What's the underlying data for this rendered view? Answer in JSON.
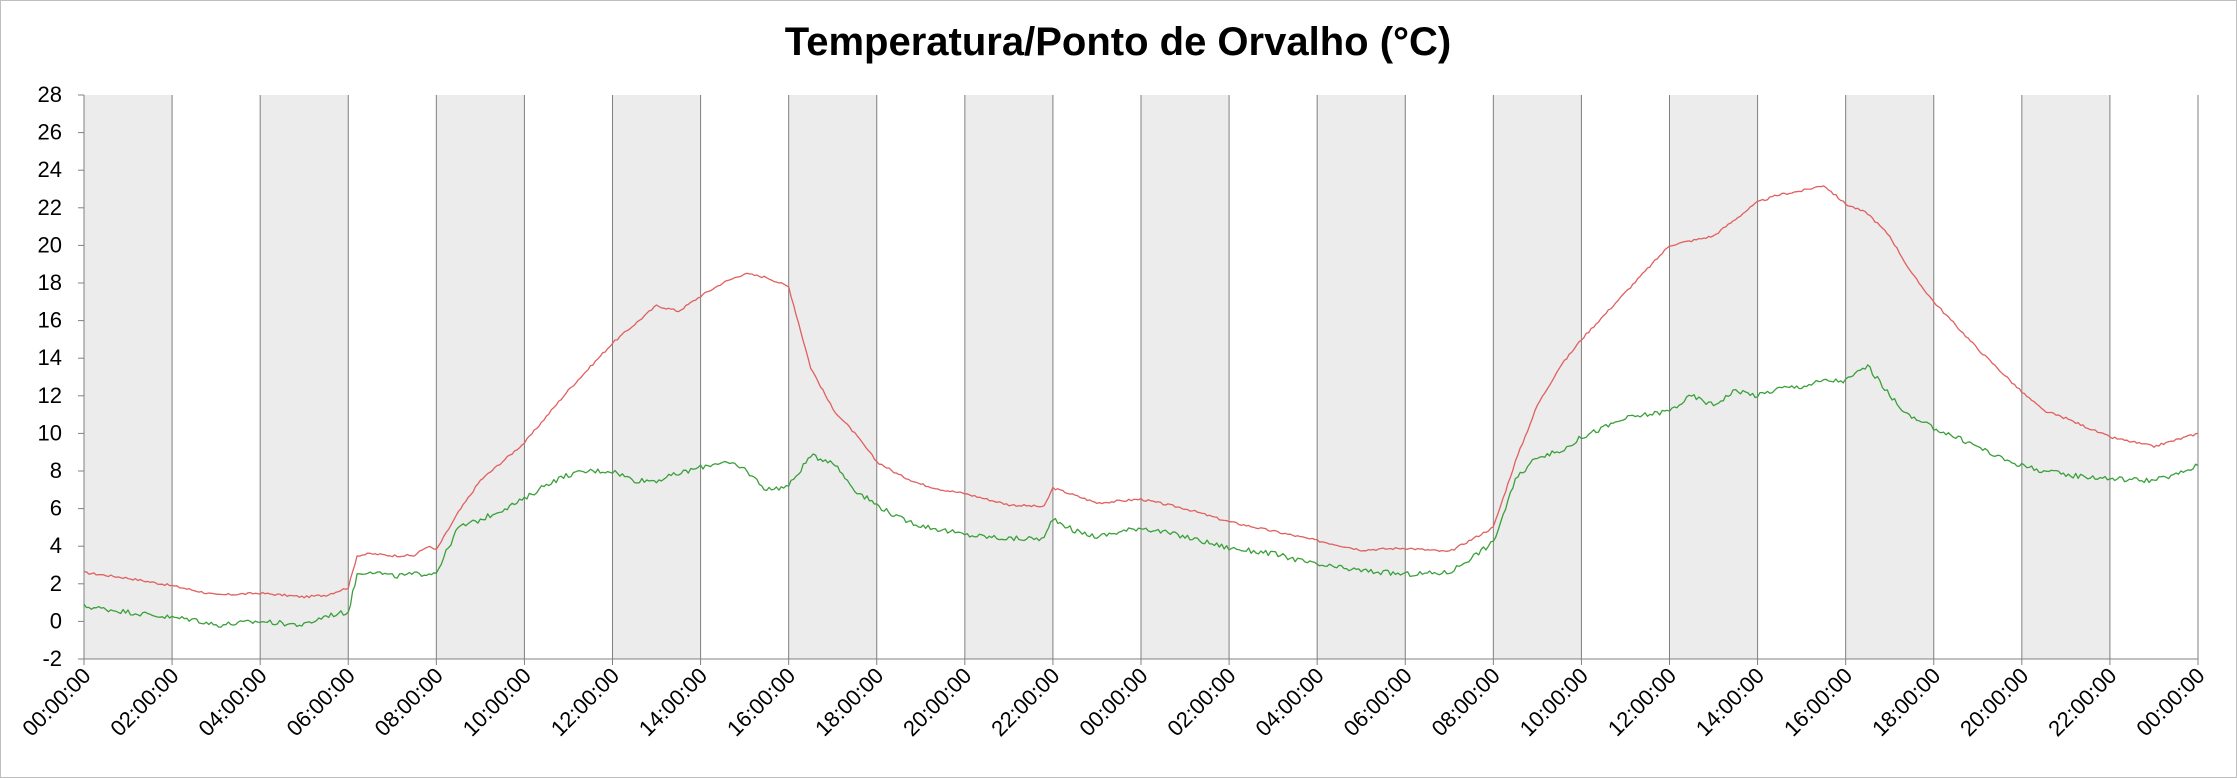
{
  "chart_data": {
    "type": "line",
    "title": "Temperatura/Ponto de Orvalho (°C)",
    "xlabel": "",
    "ylabel": "",
    "ylim": [
      -2,
      28
    ],
    "y_ticks": [
      "-2",
      "0",
      "2",
      "4",
      "6",
      "8",
      "10",
      "12",
      "14",
      "16",
      "18",
      "20",
      "22",
      "24",
      "26",
      "28"
    ],
    "x_unit": "hours",
    "xlim": [
      0,
      48
    ],
    "x_tick_labels": [
      "00:00:00",
      "02:00:00",
      "04:00:00",
      "06:00:00",
      "08:00:00",
      "10:00:00",
      "12:00:00",
      "14:00:00",
      "16:00:00",
      "18:00:00",
      "20:00:00",
      "22:00:00",
      "00:00:00",
      "02:00:00",
      "04:00:00",
      "06:00:00",
      "08:00:00",
      "10:00:00",
      "12:00:00",
      "14:00:00",
      "16:00:00",
      "18:00:00",
      "20:00:00",
      "22:00:00",
      "00:00:00"
    ],
    "shaded_bands_hours": [
      [
        0,
        2
      ],
      [
        4,
        6
      ],
      [
        8,
        10
      ],
      [
        12,
        14
      ],
      [
        16,
        18
      ],
      [
        20,
        22
      ],
      [
        24,
        26
      ],
      [
        28,
        30
      ],
      [
        32,
        34
      ],
      [
        36,
        38
      ],
      [
        40,
        42
      ],
      [
        44,
        46
      ]
    ],
    "grid": "vertical",
    "legend": "none",
    "colors": {
      "red_series": "#e06060",
      "green_series": "#3aa03a",
      "band": "#ececec",
      "gridline": "#7f7f7f"
    },
    "series": [
      {
        "color": "#e06060",
        "x": [
          0,
          1,
          2,
          3,
          4,
          5,
          5.5,
          6,
          6.2,
          6.5,
          7,
          7.5,
          7.8,
          8,
          8.5,
          9,
          10,
          11,
          12,
          13,
          13.5,
          14,
          14.5,
          15,
          15.5,
          16,
          16.5,
          17,
          17.5,
          18,
          18.5,
          19,
          19.5,
          20,
          21,
          21.8,
          22,
          22.5,
          23,
          24,
          25,
          26,
          27,
          28,
          29,
          30,
          31,
          32,
          32.5,
          33,
          33.5,
          34,
          35,
          36,
          37,
          38,
          38.5,
          39,
          39.5,
          40,
          40.5,
          41,
          41.5,
          42,
          43,
          44,
          44.5,
          45,
          46,
          47,
          48
        ],
        "y": [
          2.6,
          2.3,
          1.9,
          1.4,
          1.5,
          1.3,
          1.4,
          1.8,
          3.5,
          3.6,
          3.5,
          3.5,
          4.0,
          3.8,
          5.8,
          7.5,
          9.5,
          12.3,
          14.8,
          16.8,
          16.5,
          17.3,
          18.0,
          18.5,
          18.3,
          17.8,
          13.5,
          11.3,
          10.0,
          8.5,
          7.8,
          7.3,
          7.0,
          6.8,
          6.2,
          6.1,
          7.1,
          6.7,
          6.3,
          6.5,
          6.0,
          5.3,
          4.8,
          4.3,
          3.8,
          3.9,
          3.7,
          5.0,
          8.5,
          11.5,
          13.5,
          15.0,
          17.5,
          20.0,
          20.5,
          22.3,
          22.7,
          22.9,
          23.2,
          22.2,
          21.7,
          20.5,
          18.5,
          17.0,
          14.5,
          12.2,
          11.2,
          10.8,
          9.8,
          9.3,
          10.0
        ]
      },
      {
        "color": "#3aa03a",
        "x": [
          0,
          1,
          2,
          2.5,
          3,
          4,
          5,
          5.5,
          6,
          6.2,
          6.5,
          7,
          7.5,
          8,
          8.5,
          9,
          10,
          10.5,
          11,
          11.5,
          12,
          12.5,
          13,
          14,
          14.5,
          15,
          15.5,
          16,
          16.5,
          17,
          17.5,
          18,
          18.5,
          19,
          20,
          21,
          21.8,
          22,
          22.5,
          23,
          24,
          25,
          26,
          27,
          28,
          29,
          30,
          31,
          32,
          32.5,
          33,
          33.5,
          34,
          35,
          36,
          36.5,
          37,
          37.5,
          38,
          38.5,
          39,
          39.5,
          40,
          40.5,
          41,
          41.5,
          42,
          42.5,
          43,
          43.5,
          44,
          44.5,
          45,
          46,
          47,
          47.5,
          48
        ],
        "y": [
          0.8,
          0.5,
          0.2,
          0.1,
          -0.2,
          0.0,
          -0.2,
          0.3,
          0.5,
          2.5,
          2.7,
          2.4,
          2.5,
          2.6,
          5.0,
          5.4,
          6.5,
          7.3,
          7.8,
          8.0,
          8.0,
          7.5,
          7.5,
          8.2,
          8.5,
          8.1,
          7.0,
          7.2,
          8.8,
          8.5,
          7.0,
          6.2,
          5.5,
          5.1,
          4.6,
          4.4,
          4.4,
          5.5,
          4.8,
          4.5,
          5.0,
          4.5,
          3.9,
          3.6,
          3.0,
          2.7,
          2.5,
          2.6,
          4.2,
          7.5,
          8.8,
          9.0,
          9.8,
          10.8,
          11.2,
          12.0,
          11.5,
          12.3,
          12.0,
          12.4,
          12.5,
          12.8,
          12.8,
          13.6,
          12.0,
          10.8,
          10.3,
          9.8,
          9.3,
          8.7,
          8.3,
          8.0,
          7.8,
          7.6,
          7.5,
          7.8,
          8.3
        ]
      }
    ]
  }
}
